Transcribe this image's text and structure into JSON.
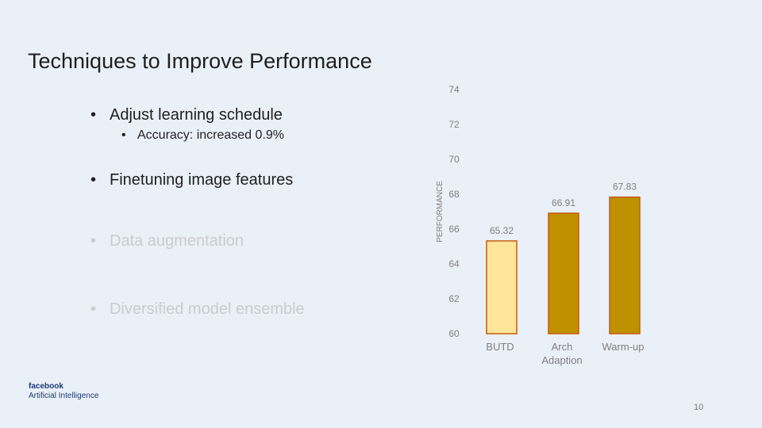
{
  "slide": {
    "title": "Techniques to Improve Performance",
    "bullets": [
      {
        "text": "Adjust learning schedule",
        "level": 1,
        "dim": false
      },
      {
        "text": "Accuracy: increased 0.9%",
        "level": 2,
        "dim": false
      },
      {
        "text": "Finetuning image features",
        "level": 1,
        "dim": false
      },
      {
        "text": "Data augmentation",
        "level": 1,
        "dim": true
      },
      {
        "text": "Diversified model ensemble",
        "level": 1,
        "dim": true
      }
    ],
    "bullet_glyph": "•",
    "logo": {
      "line1": "facebook",
      "line2": "Artificial Intelligence"
    },
    "page_number": "10"
  },
  "chart_data": {
    "type": "bar",
    "categories": [
      [
        "BUTD"
      ],
      [
        "Arch",
        "Adaption"
      ],
      [
        "Warm-up"
      ]
    ],
    "values": [
      65.32,
      66.91,
      67.83
    ],
    "data_labels": [
      "65.32",
      "66.91",
      "67.83"
    ],
    "ylabel": "PERFORMANCE",
    "ylim": [
      60,
      74
    ],
    "yticks": [
      60,
      62,
      64,
      66,
      68,
      70,
      72,
      74
    ],
    "grid": false,
    "colors": {
      "highlight_fill": "#ffe699",
      "highlight_stroke": "#c55a11",
      "bar_fill": "#bf9000",
      "bar_stroke": "#c55a11",
      "text": "#7f7f7f"
    },
    "highlight_index": 0
  }
}
